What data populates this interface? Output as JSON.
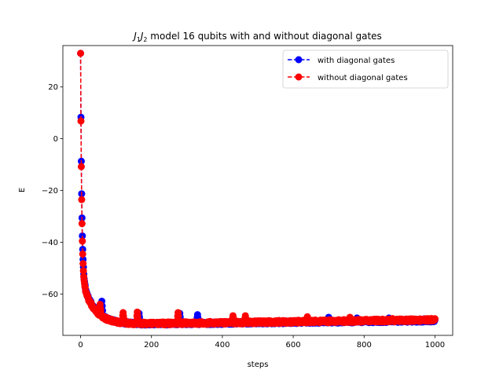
{
  "chart_data": {
    "type": "line",
    "title_main": "J",
    "title_sub1": "1",
    "title_mid": "J",
    "title_sub2": "2",
    "title_rest": " model 16 qubits with and without diagonal gates",
    "xlabel": "steps",
    "ylabel": "E",
    "xlim": [
      -50,
      1050
    ],
    "ylim": [
      -76,
      36
    ],
    "xticks": [
      0,
      200,
      400,
      600,
      800,
      1000
    ],
    "yticks": [
      20,
      0,
      -20,
      -40,
      -60
    ],
    "xtick_labels": [
      "0",
      "200",
      "400",
      "600",
      "800",
      "1000"
    ],
    "ytick_labels": [
      "20",
      "0",
      "−20",
      "−40",
      "−60"
    ],
    "legend_position": "upper right",
    "series": [
      {
        "name": "with diagonal gates",
        "color": "#0000ff",
        "curve": {
          "start": 33,
          "final": -70.3,
          "fast_tau": 3.2,
          "fast_amp": 84,
          "slow_tau": 35,
          "slow_amp": 19.3,
          "drift": -1.6,
          "noise": 0.5
        },
        "bumps": [
          [
            60,
            -62.8
          ],
          [
            165,
            -67.5
          ],
          [
            280,
            -67.5
          ],
          [
            330,
            -68.0
          ],
          [
            640,
            -69.0
          ],
          [
            700,
            -69.0
          ],
          [
            780,
            -69.3
          ],
          [
            870,
            -69.3
          ],
          [
            970,
            -69.6
          ]
        ]
      },
      {
        "name": "without diagonal gates",
        "color": "#ff0000",
        "curve": {
          "start": 33,
          "final": -70.0,
          "fast_tau": 3.0,
          "fast_amp": 84,
          "slow_tau": 33,
          "slow_amp": 19.0,
          "drift": -1.8,
          "noise": 0.55
        },
        "bumps": [
          [
            55,
            -64.0
          ],
          [
            120,
            -67.2
          ],
          [
            160,
            -67.0
          ],
          [
            275,
            -67.2
          ],
          [
            430,
            -68.4
          ],
          [
            465,
            -68.4
          ],
          [
            640,
            -68.8
          ],
          [
            760,
            -69.0
          ],
          [
            880,
            -69.5
          ]
        ]
      }
    ]
  }
}
